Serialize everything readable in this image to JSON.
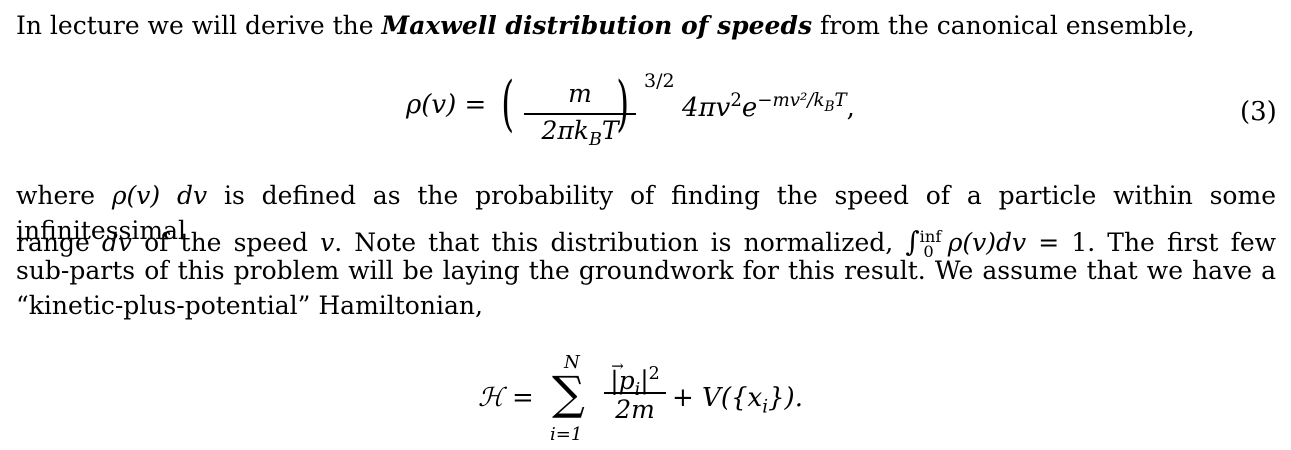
{
  "intro": {
    "before": "In lecture we will derive the ",
    "emph": "Maxwell distribution of speeds",
    "after": " from the canonical ensemble,"
  },
  "equation1": {
    "lhs": "ρ(v) =",
    "numerator": "m",
    "denominator": "2πk",
    "denominator_sub": "B",
    "denominator_end": "T",
    "outer_exponent": "3/2",
    "rhs_prefix": "4πv",
    "rhs_sq": "2",
    "rhs_e": "e",
    "rhs_exponent": "−mv²/k",
    "rhs_exponent_sub": "B",
    "rhs_exponent_end": "T",
    "trailing": ",",
    "number": "(3)"
  },
  "para2": {
    "line1_a": "where ",
    "line1_rho": "ρ(v) dv",
    "line1_b": " is defined as the probability of finding the speed of a particle within some infinitessimal",
    "line2_a": "range ",
    "line2_dv": "dv",
    "line2_b": " of the speed ",
    "line2_v": "v",
    "line2_c": ". Note that this distribution is normalized, ",
    "integral": "∫",
    "integral_upper": "inf",
    "integral_lower": "0",
    "integrand": "ρ(v)dv",
    "integral_eq": " = 1",
    "line2_d": ". The first few",
    "line3": "sub-parts of this problem will be laying the groundwork for this result. We assume that we have a",
    "line4": "“kinetic-plus-potential” Hamiltonian,"
  },
  "equation2": {
    "lhs": "ℋ =",
    "sum_upper": "N",
    "sum_symbol": "∑",
    "sum_lower": "i=1",
    "numerator": "|p",
    "numerator_sub": "i",
    "numerator_end": "|",
    "numerator_sq": "2",
    "denominator": "2m",
    "rhs": "+ V({x",
    "rhs_sub": "i",
    "rhs_end": "})."
  }
}
